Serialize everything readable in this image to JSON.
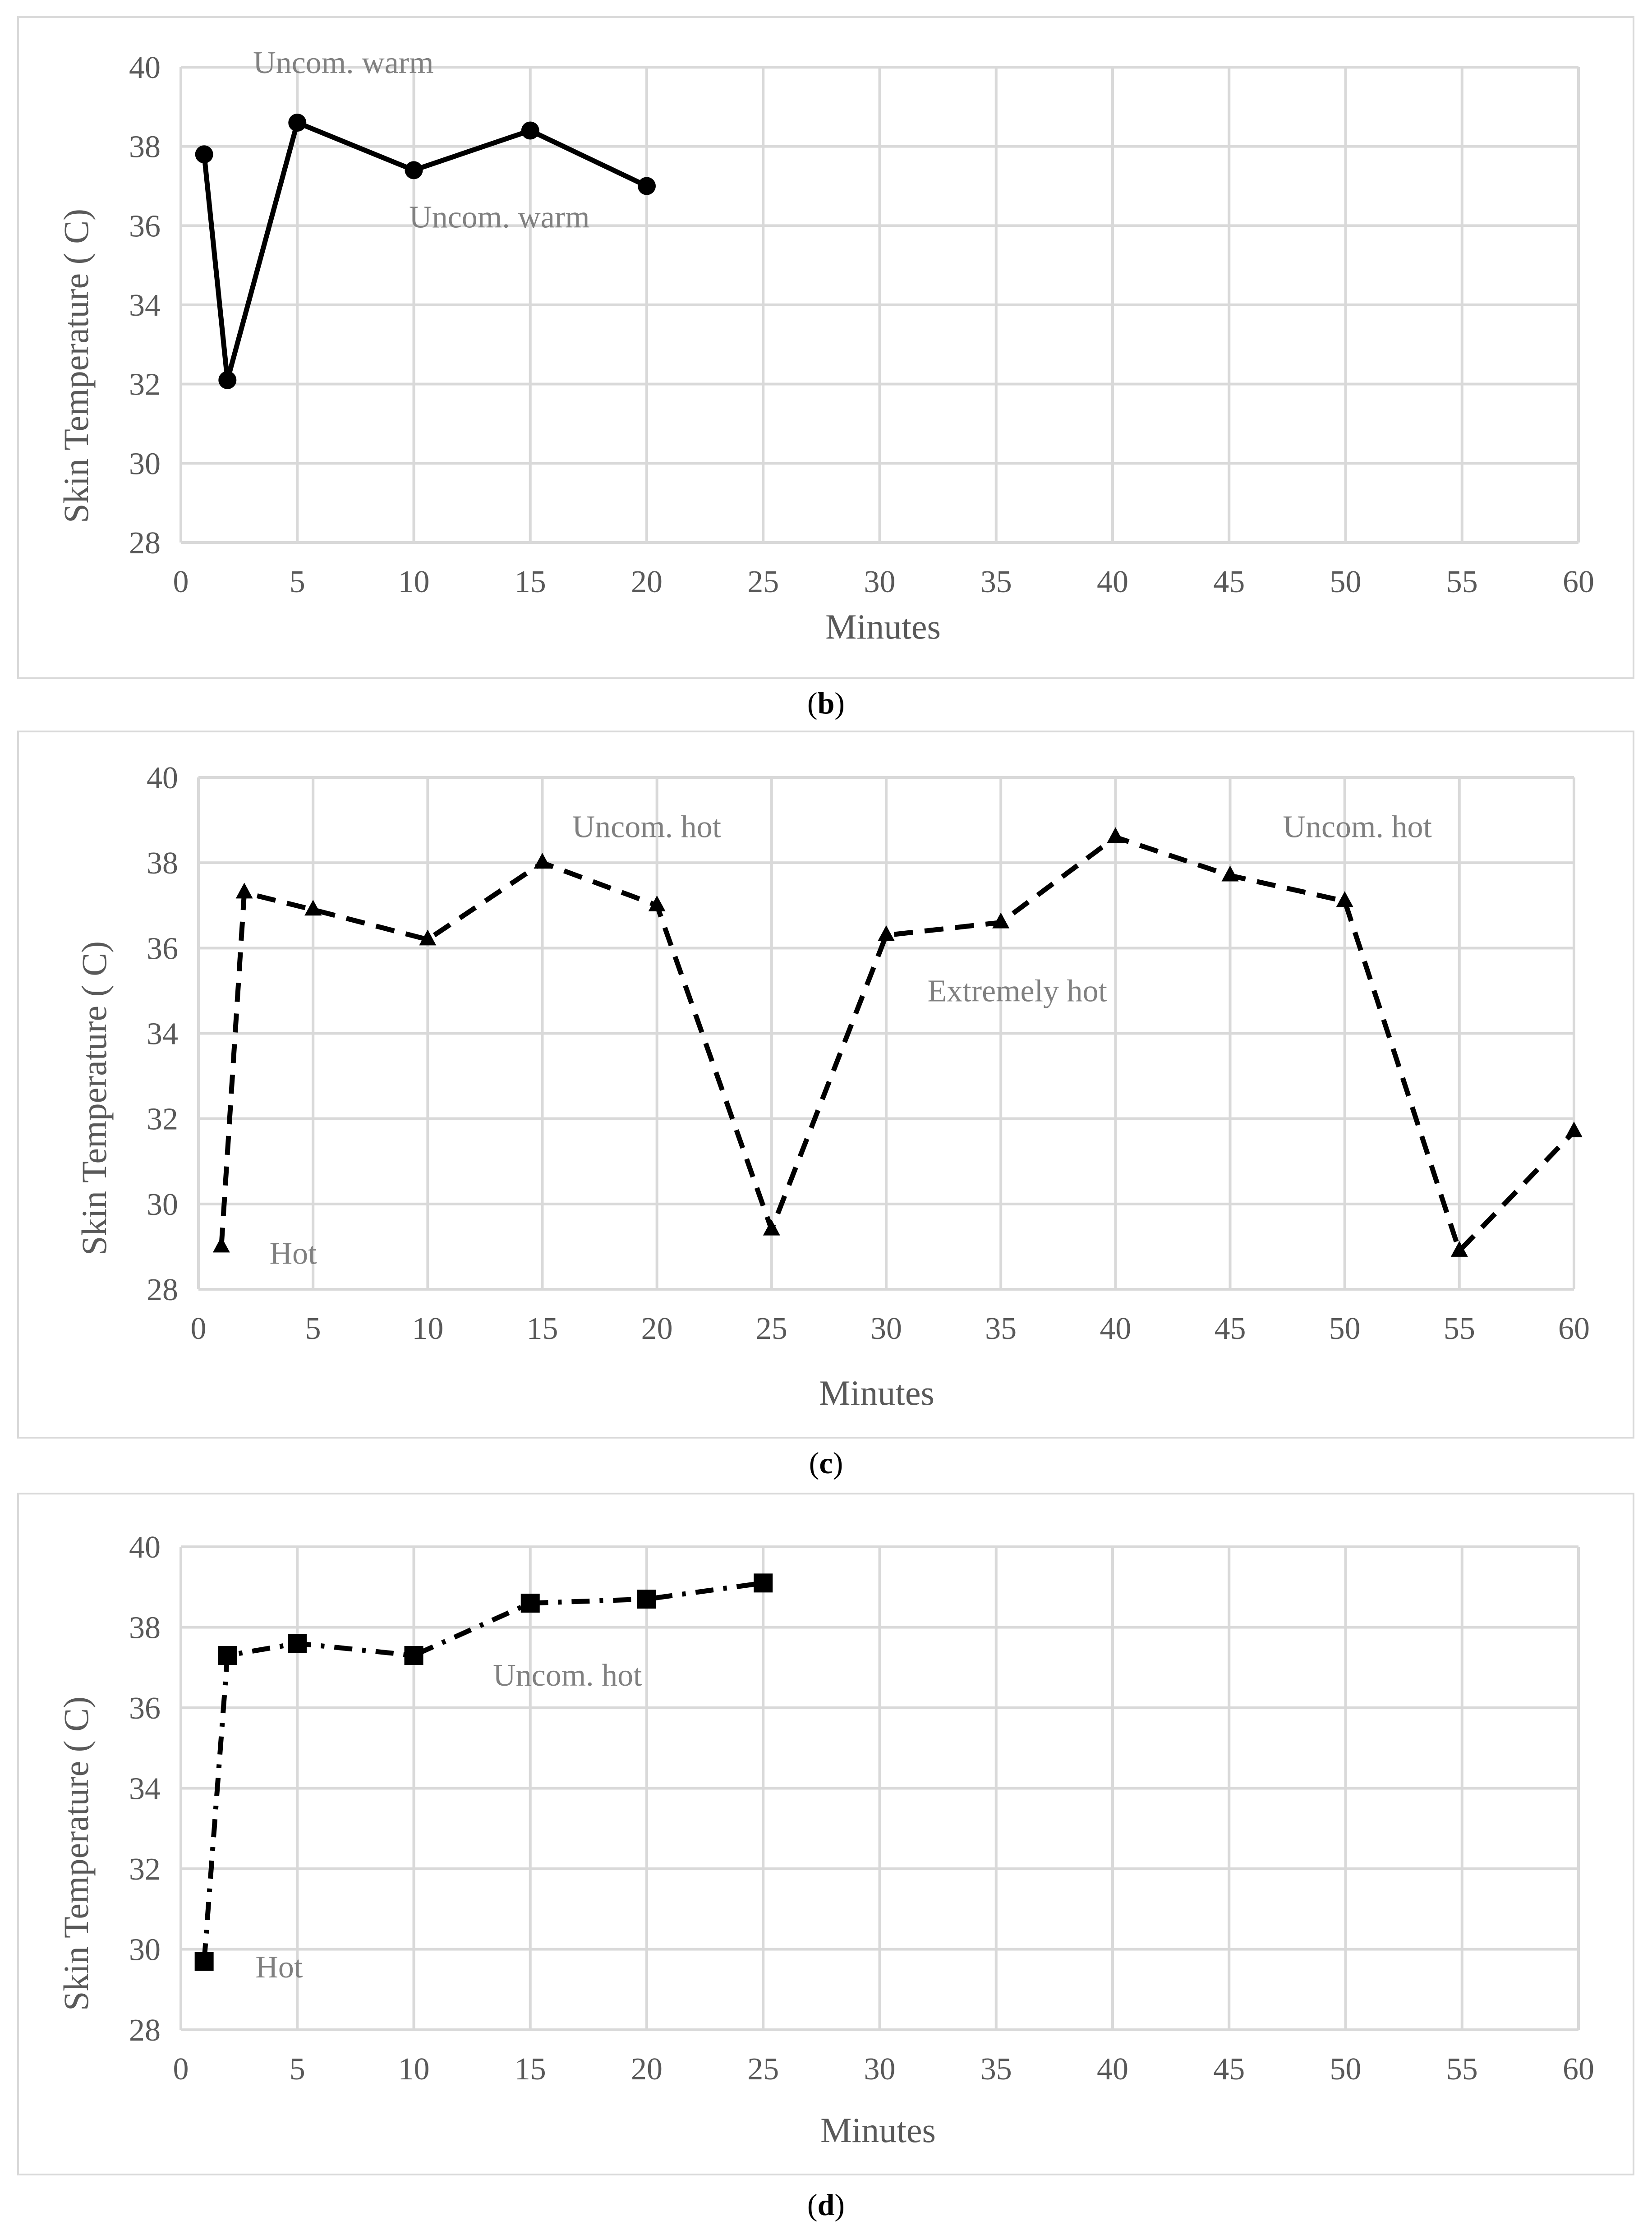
{
  "chart_data": [
    {
      "type": "line",
      "panel_label": "b",
      "line_style": "solid",
      "marker": "circle",
      "xlabel": "Minutes",
      "ylabel": "Skin Temperature (   C)",
      "xlim": [
        0,
        60
      ],
      "ylim": [
        28,
        40
      ],
      "xticks": [
        "0",
        "5",
        "10",
        "15",
        "20",
        "25",
        "30",
        "35",
        "40",
        "45",
        "50",
        "55",
        "60"
      ],
      "yticks": [
        "28",
        "30",
        "32",
        "34",
        "36",
        "38",
        "40"
      ],
      "x": [
        1,
        2,
        5,
        10,
        15,
        20
      ],
      "y": [
        37.8,
        32.1,
        38.6,
        37.4,
        38.4,
        37.0
      ],
      "annotations": [
        {
          "text": "Uncom. warm",
          "x": 3.1,
          "y": 39.85
        },
        {
          "text": "Uncom. warm",
          "x": 9.8,
          "y": 35.95
        }
      ]
    },
    {
      "type": "line",
      "panel_label": "c",
      "line_style": "dashed",
      "marker": "triangle",
      "xlabel": "Minutes",
      "ylabel": "Skin Temperature (   C)",
      "xlim": [
        0,
        60
      ],
      "ylim": [
        28,
        40
      ],
      "xticks": [
        "0",
        "5",
        "10",
        "15",
        "20",
        "25",
        "30",
        "35",
        "40",
        "45",
        "50",
        "55",
        "60"
      ],
      "yticks": [
        "28",
        "30",
        "32",
        "34",
        "36",
        "38",
        "40"
      ],
      "x": [
        1,
        2,
        5,
        10,
        15,
        20,
        25,
        30,
        35,
        40,
        45,
        50,
        55,
        60
      ],
      "y": [
        29.0,
        37.3,
        36.9,
        36.2,
        38.0,
        37.0,
        29.4,
        36.3,
        36.6,
        38.6,
        37.7,
        37.1,
        28.9,
        31.7
      ],
      "annotations": [
        {
          "text": "Uncom. hot",
          "x": 16.3,
          "y": 38.6
        },
        {
          "text": "Uncom. hot",
          "x": 47.3,
          "y": 38.6
        },
        {
          "text": "Extremely hot",
          "x": 31.8,
          "y": 34.75
        },
        {
          "text": "Hot",
          "x": 3.1,
          "y": 28.6
        }
      ]
    },
    {
      "type": "line",
      "panel_label": "d",
      "line_style": "dash-dot",
      "marker": "square",
      "xlabel": "Minutes",
      "ylabel": "Skin Temperature (   C)",
      "xlim": [
        0,
        60
      ],
      "ylim": [
        28,
        40
      ],
      "xticks": [
        "0",
        "5",
        "10",
        "15",
        "20",
        "25",
        "30",
        "35",
        "40",
        "45",
        "50",
        "55",
        "60"
      ],
      "yticks": [
        "28",
        "30",
        "32",
        "34",
        "36",
        "38",
        "40"
      ],
      "x": [
        1,
        2,
        5,
        10,
        15,
        20,
        25
      ],
      "y": [
        29.7,
        37.3,
        37.6,
        37.3,
        38.6,
        38.7,
        39.1
      ],
      "annotations": [
        {
          "text": "Uncom. hot",
          "x": 13.4,
          "y": 36.55
        },
        {
          "text": "Hot",
          "x": 3.2,
          "y": 29.3
        }
      ]
    }
  ],
  "colors": {
    "grid": "#d9d9d9",
    "axis_text": "#595959",
    "series": "#000000",
    "annotation": "#808080"
  }
}
